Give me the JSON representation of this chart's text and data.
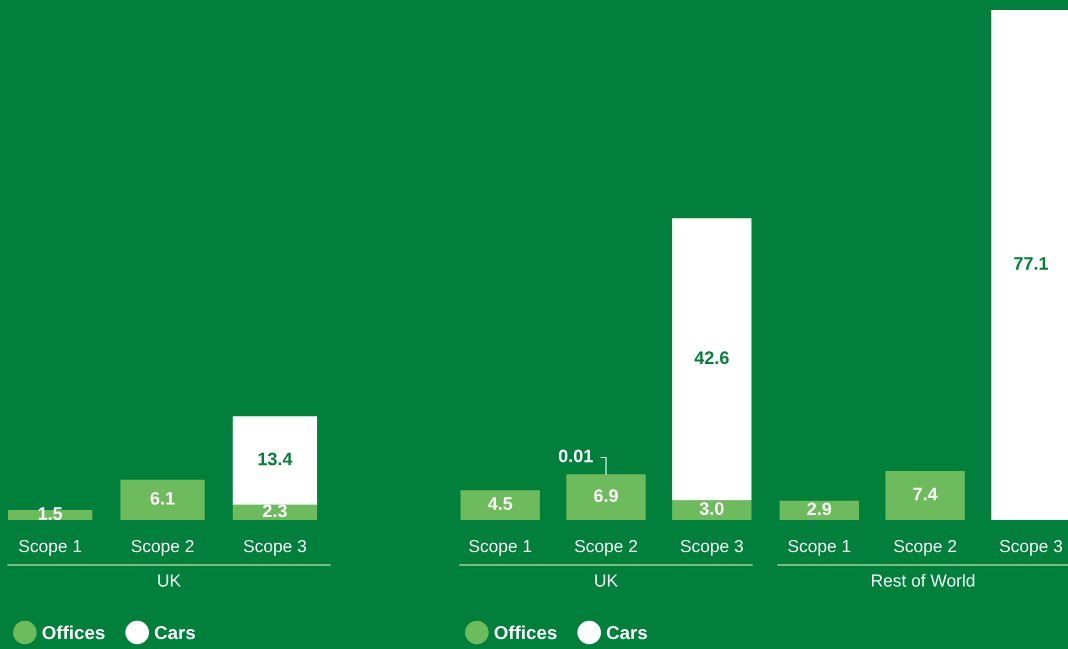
{
  "chart_data": [
    {
      "type": "bar",
      "stacked": true,
      "categories": [
        "Scope 1",
        "Scope 2",
        "Scope 3"
      ],
      "xlabel": "UK",
      "legend": "bottom left",
      "tick_labels": "x",
      "series": [
        {
          "name": "Offices",
          "color": "#6dbb5c",
          "values": [
            1.5,
            6.1,
            2.3
          ],
          "value_labels": [
            "1.5",
            "6.1",
            "2.3"
          ]
        },
        {
          "name": "Cars",
          "color": "#ffffff",
          "values": [
            null,
            null,
            13.4
          ],
          "value_labels": [
            null,
            null,
            "13.4"
          ]
        }
      ]
    },
    {
      "type": "bar",
      "stacked": true,
      "categories": [
        "Scope 1",
        "Scope 2",
        "Scope 3"
      ],
      "xlabel": "UK",
      "legend": "bottom left",
      "tick_labels": "x",
      "series": [
        {
          "name": "Offices",
          "color": "#6dbb5c",
          "values": [
            4.5,
            6.9,
            3.0
          ],
          "value_labels": [
            "4.5",
            "6.9",
            "3.0"
          ]
        },
        {
          "name": "Cars",
          "color": "#ffffff",
          "values": [
            null,
            0.01,
            42.6
          ],
          "value_labels": [
            null,
            "0.01",
            "42.6"
          ]
        }
      ]
    },
    {
      "type": "bar",
      "stacked": true,
      "categories": [
        "Scope 1",
        "Scope 2",
        "Scope 3"
      ],
      "xlabel": "Rest of World",
      "tick_labels": "x",
      "series": [
        {
          "color": "#6dbb5c",
          "values": [
            2.9,
            7.4,
            null
          ],
          "value_labels": [
            "2.9",
            "7.4",
            null
          ]
        },
        {
          "color": "#ffffff",
          "values": [
            null,
            null,
            77.1
          ],
          "value_labels": [
            null,
            null,
            "77.1"
          ]
        }
      ]
    }
  ]
}
